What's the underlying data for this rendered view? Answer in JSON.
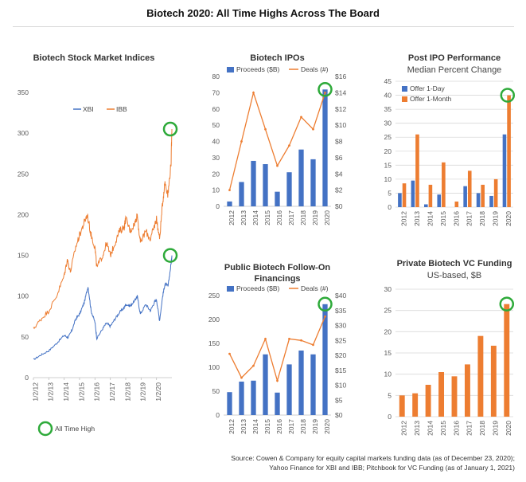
{
  "page": {
    "title": "Biotech 2020: All Time Highs Across The Board",
    "ath_label": "All Time High",
    "source_line1": "Source: Cowen & Company for equity capital markets funding data (as of December 23, 2020);",
    "source_line2": "Yahoo Finance for XBI and IBB; Pitchbook for VC Funding (as of January 1, 2021)"
  },
  "colors": {
    "blue": "#4472C4",
    "orange": "#ED7D31",
    "green": "#2EAA3A"
  },
  "chart_data": [
    {
      "id": "indices",
      "type": "line",
      "title": "Biotech Stock Market Indices",
      "ylim": [
        0,
        350
      ],
      "yticks": [
        0,
        50,
        100,
        150,
        200,
        250,
        300,
        350
      ],
      "x_tick_labels": [
        "1/2/12",
        "1/2/13",
        "1/2/14",
        "1/2/15",
        "1/2/16",
        "1/2/17",
        "1/2/18",
        "1/2/19",
        "1/2/20"
      ],
      "xlim_years": [
        2012.0,
        2021.0
      ],
      "legend_position": "top",
      "ath_markers": [
        "XBI",
        "IBB"
      ],
      "series": [
        {
          "name": "XBI",
          "color": "#4472C4",
          "points": [
            [
              2012.0,
              22
            ],
            [
              2012.5,
              28
            ],
            [
              2013.0,
              33
            ],
            [
              2013.5,
              42
            ],
            [
              2014.0,
              52
            ],
            [
              2014.25,
              49
            ],
            [
              2014.5,
              58
            ],
            [
              2014.75,
              72
            ],
            [
              2015.0,
              78
            ],
            [
              2015.3,
              92
            ],
            [
              2015.55,
              112
            ],
            [
              2015.75,
              82
            ],
            [
              2016.0,
              68
            ],
            [
              2016.12,
              48
            ],
            [
              2016.5,
              60
            ],
            [
              2016.75,
              67
            ],
            [
              2017.0,
              63
            ],
            [
              2017.3,
              72
            ],
            [
              2017.6,
              80
            ],
            [
              2017.9,
              86
            ],
            [
              2018.0,
              90
            ],
            [
              2018.3,
              88
            ],
            [
              2018.6,
              95
            ],
            [
              2018.75,
              100
            ],
            [
              2018.95,
              78
            ],
            [
              2019.3,
              90
            ],
            [
              2019.6,
              82
            ],
            [
              2019.85,
              92
            ],
            [
              2020.0,
              96
            ],
            [
              2020.2,
              70
            ],
            [
              2020.4,
              100
            ],
            [
              2020.55,
              115
            ],
            [
              2020.75,
              112
            ],
            [
              2020.95,
              140
            ],
            [
              2021.0,
              150
            ]
          ]
        },
        {
          "name": "IBB",
          "color": "#ED7D31",
          "points": [
            [
              2012.0,
              60
            ],
            [
              2012.5,
              72
            ],
            [
              2013.0,
              82
            ],
            [
              2013.5,
              100
            ],
            [
              2014.0,
              125
            ],
            [
              2014.2,
              145
            ],
            [
              2014.4,
              130
            ],
            [
              2014.75,
              160
            ],
            [
              2015.0,
              175
            ],
            [
              2015.3,
              190
            ],
            [
              2015.5,
              200
            ],
            [
              2015.75,
              175
            ],
            [
              2016.0,
              160
            ],
            [
              2016.12,
              135
            ],
            [
              2016.5,
              150
            ],
            [
              2016.75,
              165
            ],
            [
              2017.0,
              150
            ],
            [
              2017.3,
              165
            ],
            [
              2017.6,
              180
            ],
            [
              2017.9,
              185
            ],
            [
              2018.0,
              195
            ],
            [
              2018.3,
              180
            ],
            [
              2018.6,
              190
            ],
            [
              2018.75,
              200
            ],
            [
              2018.95,
              165
            ],
            [
              2019.3,
              180
            ],
            [
              2019.6,
              170
            ],
            [
              2019.85,
              185
            ],
            [
              2020.0,
              195
            ],
            [
              2020.2,
              170
            ],
            [
              2020.4,
              215
            ],
            [
              2020.55,
              240
            ],
            [
              2020.75,
              225
            ],
            [
              2020.95,
              265
            ],
            [
              2021.0,
              305
            ]
          ]
        }
      ]
    },
    {
      "id": "ipos",
      "type": "bar",
      "title": "Biotech IPOs",
      "categories": [
        "2012",
        "2013",
        "2014",
        "2015",
        "2016",
        "2017",
        "2018",
        "2019",
        "2020"
      ],
      "series": [
        {
          "name": "Proceeds ($B)",
          "kind": "bar",
          "axis": "left",
          "values": [
            3,
            15,
            28,
            26,
            9,
            21,
            35,
            29,
            72
          ]
        },
        {
          "name": "Deals (#)",
          "kind": "line",
          "axis": "right",
          "values": [
            2,
            8,
            14,
            9.5,
            5,
            7.5,
            11,
            9.5,
            14
          ]
        }
      ],
      "ylim": [
        0,
        80
      ],
      "yticks": [
        0,
        10,
        20,
        30,
        40,
        50,
        60,
        70,
        80
      ],
      "y2lim": [
        0,
        16
      ],
      "y2ticks": [
        "$0",
        "$2",
        "$4",
        "$6",
        "$8",
        "$10",
        "$12",
        "$14",
        "$16"
      ],
      "legend_position": "top",
      "ath_marker": "2020"
    },
    {
      "id": "post_ipo",
      "type": "bar",
      "title": "Post IPO Performance",
      "subtitle": "Median Percent Change",
      "categories": [
        "2012",
        "2013",
        "2014",
        "2015",
        "2016",
        "2017",
        "2018",
        "2019",
        "2020"
      ],
      "series": [
        {
          "name": "Offer 1-Day",
          "values": [
            5,
            9.5,
            1,
            4.5,
            0,
            7.5,
            5,
            4,
            26
          ]
        },
        {
          "name": "Offer 1-Month",
          "values": [
            8.5,
            26,
            8,
            16,
            2,
            13,
            8,
            10,
            40
          ]
        }
      ],
      "ylim": [
        0,
        45
      ],
      "yticks": [
        0,
        5,
        10,
        15,
        20,
        25,
        30,
        35,
        40,
        45
      ],
      "legend_position": "top-left",
      "ath_marker": "2020"
    },
    {
      "id": "follow_on",
      "type": "bar",
      "title": "Public Biotech Follow-On Financings",
      "categories": [
        "2012",
        "2013",
        "2014",
        "2015",
        "2016",
        "2017",
        "2018",
        "2019",
        "2020"
      ],
      "series": [
        {
          "name": "Proceeds ($B)",
          "kind": "bar",
          "axis": "left",
          "values": [
            48,
            70,
            72,
            127,
            47,
            106,
            135,
            127,
            232
          ]
        },
        {
          "name": "Deals (#)",
          "kind": "line",
          "axis": "right",
          "values": [
            20.5,
            12.5,
            16.5,
            25.5,
            11.5,
            25.5,
            25,
            23.5,
            33
          ]
        }
      ],
      "ylim": [
        0,
        250
      ],
      "yticks": [
        0,
        50,
        100,
        150,
        200,
        250
      ],
      "y2lim": [
        0,
        40
      ],
      "y2ticks": [
        "$0",
        "$5",
        "$10",
        "$15",
        "$20",
        "$25",
        "$30",
        "$35",
        "$40"
      ],
      "legend_position": "top",
      "ath_marker": "2020"
    },
    {
      "id": "vc",
      "type": "bar",
      "title": "Private Biotech VC Funding",
      "subtitle": "US-based, $B",
      "categories": [
        "2012",
        "2013",
        "2014",
        "2015",
        "2016",
        "2017",
        "2018",
        "2019",
        "2020"
      ],
      "series": [
        {
          "values": [
            5,
            5.5,
            7.5,
            10.5,
            9.5,
            12.3,
            19,
            16.7,
            26.5
          ]
        }
      ],
      "ylim": [
        0,
        30
      ],
      "yticks": [
        0,
        5,
        10,
        15,
        20,
        25,
        30
      ],
      "ath_marker": "2020"
    }
  ]
}
